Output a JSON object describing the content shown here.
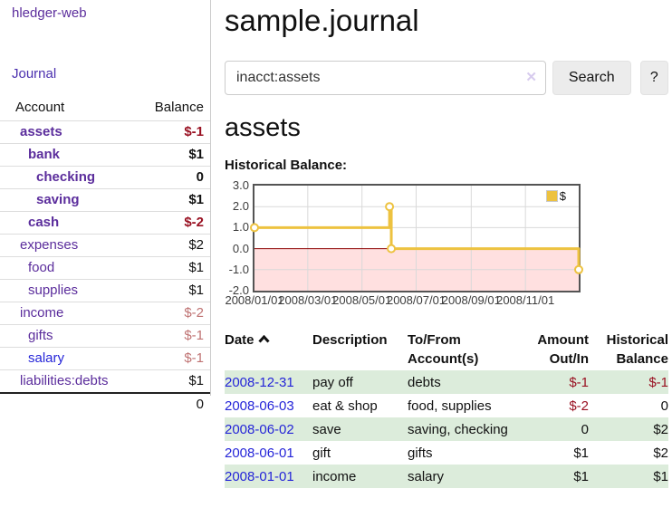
{
  "brand": "hledger-web",
  "nav": {
    "journal": "Journal"
  },
  "sidebar": {
    "header": {
      "account": "Account",
      "balance": "Balance"
    },
    "accounts": [
      {
        "name": "assets",
        "indent": 1,
        "bold": true,
        "balance": "$-1",
        "balance_style": "neg-strong",
        "link_style": "purple"
      },
      {
        "name": "bank",
        "indent": 2,
        "bold": true,
        "balance": "$1",
        "balance_style": "pos",
        "link_style": "purple"
      },
      {
        "name": "checking",
        "indent": 3,
        "bold": true,
        "balance": "0",
        "balance_style": "pos",
        "link_style": "purple"
      },
      {
        "name": "saving",
        "indent": 3,
        "bold": true,
        "balance": "$1",
        "balance_style": "pos",
        "link_style": "purple"
      },
      {
        "name": "cash",
        "indent": 2,
        "bold": true,
        "balance": "$-2",
        "balance_style": "neg-strong",
        "link_style": "purple"
      },
      {
        "name": "expenses",
        "indent": 1,
        "bold": false,
        "balance": "$2",
        "balance_style": "pos",
        "link_style": "purple"
      },
      {
        "name": "food",
        "indent": 2,
        "bold": false,
        "balance": "$1",
        "balance_style": "pos",
        "link_style": "purple"
      },
      {
        "name": "supplies",
        "indent": 2,
        "bold": false,
        "balance": "$1",
        "balance_style": "pos",
        "link_style": "purple"
      },
      {
        "name": "income",
        "indent": 1,
        "bold": false,
        "balance": "$-2",
        "balance_style": "neg-soft",
        "link_style": "purple"
      },
      {
        "name": "gifts",
        "indent": 2,
        "bold": false,
        "balance": "$-1",
        "balance_style": "neg-soft",
        "link_style": "purple"
      },
      {
        "name": "salary",
        "indent": 2,
        "bold": false,
        "balance": "$-1",
        "balance_style": "neg-soft",
        "link_style": "blue"
      },
      {
        "name": "liabilities:debts",
        "indent": 1,
        "bold": false,
        "balance": "$1",
        "balance_style": "pos",
        "link_style": "purple"
      }
    ],
    "total": "0"
  },
  "main": {
    "title": "sample.journal",
    "search": {
      "value": "inacct:assets",
      "clear_icon": "✕",
      "search_button": "Search",
      "help_button": "?"
    },
    "account_title": "assets",
    "chart_heading": "Historical Balance:"
  },
  "chart_data": {
    "type": "line",
    "title": "Historical Balance:",
    "step": true,
    "xlim": [
      "2008-01-01",
      "2008-12-31"
    ],
    "ylim": [
      -2,
      3
    ],
    "grid": true,
    "legend_position": "top-right",
    "series": [
      {
        "name": "$",
        "color": "#edc240",
        "points": [
          {
            "date": "2008-01-01",
            "value": 1
          },
          {
            "date": "2008-06-01",
            "value": 2
          },
          {
            "date": "2008-06-03",
            "value": 0
          },
          {
            "date": "2008-12-31",
            "value": -1
          }
        ]
      }
    ],
    "x_tick_labels": [
      "2008/01/01",
      "2008/03/01",
      "2008/05/01",
      "2008/07/01",
      "2008/09/01",
      "2008/11/01"
    ],
    "y_tick_values": [
      3,
      2,
      1,
      0,
      -1,
      -2
    ],
    "y_tick_labels": [
      "3.0",
      "2.0",
      "1.0",
      "0.0",
      "-1.0",
      "-2.0"
    ],
    "negative_region_color": "rgba(255,0,0,0.12)",
    "zero_line_color": "#8b0000",
    "gridline_color": "#d9d9d9"
  },
  "register": {
    "columns": {
      "date": "Date",
      "description": "Description",
      "accounts": [
        "To/From",
        "Account(s)"
      ],
      "amount": [
        "Amount",
        "Out/In"
      ],
      "balance": [
        "Historical",
        "Balance"
      ]
    },
    "rows": [
      {
        "date": "2008-12-31",
        "description": "pay off",
        "accounts": "debts",
        "amount": "$-1",
        "balance": "$-1",
        "shaded": true
      },
      {
        "date": "2008-06-03",
        "description": "eat & shop",
        "accounts": "food, supplies",
        "amount": "$-2",
        "balance": "0",
        "shaded": false
      },
      {
        "date": "2008-06-02",
        "description": "save",
        "accounts": "saving, checking",
        "amount": "0",
        "balance": "$2",
        "shaded": true
      },
      {
        "date": "2008-06-01",
        "description": "gift",
        "accounts": "gifts",
        "amount": "$1",
        "balance": "$2",
        "shaded": false
      },
      {
        "date": "2008-01-01",
        "description": "income",
        "accounts": "salary",
        "amount": "$1",
        "balance": "$1",
        "shaded": true
      }
    ]
  }
}
